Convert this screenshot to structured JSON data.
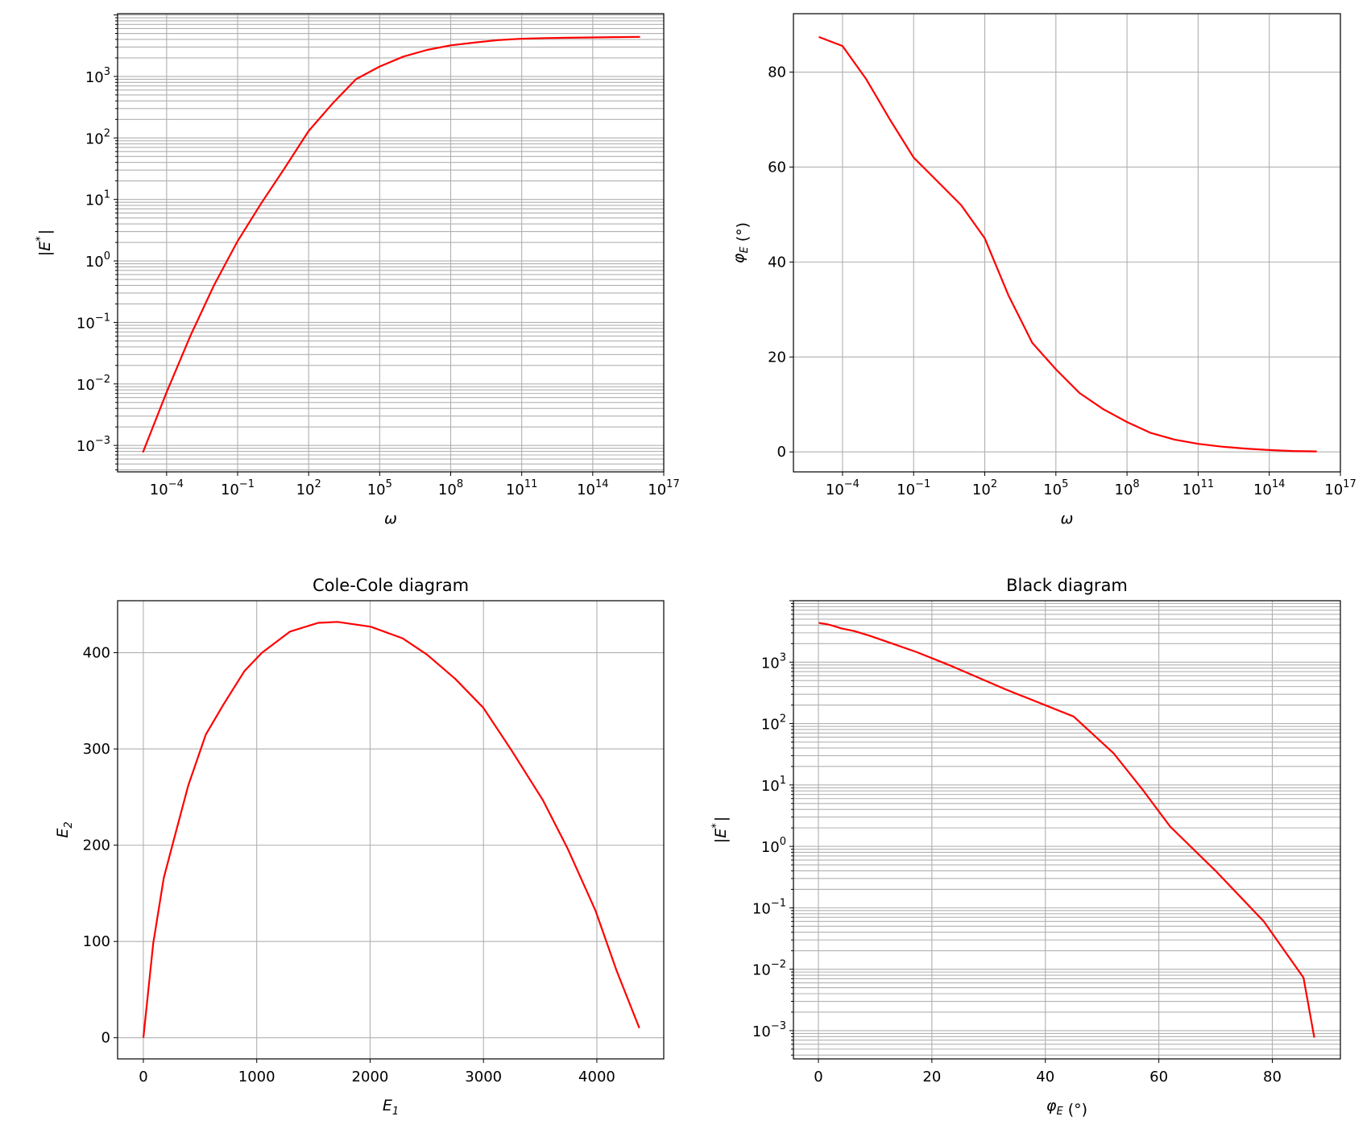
{
  "colors": {
    "line": "#ff0000",
    "grid": "#b0b0b0",
    "axis": "#000000"
  },
  "chart_data": [
    {
      "id": "modulus",
      "type": "line",
      "title": "",
      "xlabel": {
        "main": "ω",
        "italic": true
      },
      "ylabel": {
        "prefix": "|",
        "main": "E",
        "sup": "*",
        "suffix": "|",
        "italic": true
      },
      "xscale": "log",
      "yscale": "log",
      "xlim_log10": [
        -6.07,
        17
      ],
      "ylim_log10": [
        -3.43,
        4.02
      ],
      "xticks_exp": [
        -4,
        -1,
        2,
        5,
        8,
        11,
        14,
        17
      ],
      "yticks_exp": [
        -3,
        -2,
        -1,
        0,
        1,
        2,
        3
      ],
      "grid": true,
      "series": [
        {
          "name": "|E*|",
          "x_log10": [
            -5,
            -4,
            -3,
            -2,
            -1,
            0,
            1,
            2,
            3,
            4,
            5,
            6,
            7,
            8,
            9,
            10,
            11,
            12,
            13,
            14,
            15,
            16
          ],
          "y": [
            0.00077,
            0.0073,
            0.06,
            0.4,
            2.1,
            8.7,
            33,
            130,
            360,
            900,
            1450,
            2100,
            2700,
            3200,
            3550,
            3900,
            4100,
            4200,
            4250,
            4300,
            4350,
            4400
          ]
        }
      ]
    },
    {
      "id": "phase",
      "type": "line",
      "title": "",
      "xlabel": {
        "main": "ω",
        "italic": true
      },
      "ylabel": {
        "main": "φ",
        "sub": "E",
        "suffix": " (°)",
        "italic": true
      },
      "xscale": "log",
      "yscale": "linear",
      "xlim_log10": [
        -6.07,
        17
      ],
      "ylim": [
        -4.2,
        92.3
      ],
      "xticks_exp": [
        -4,
        -1,
        2,
        5,
        8,
        11,
        14,
        17
      ],
      "yticks": [
        0,
        20,
        40,
        60,
        80
      ],
      "grid": true,
      "series": [
        {
          "name": "φE",
          "x_log10": [
            -5,
            -4,
            -3,
            -2,
            -1,
            0,
            1,
            2,
            3,
            4,
            5,
            6,
            7,
            8,
            9,
            10,
            11,
            12,
            13,
            14,
            15,
            16
          ],
          "y": [
            87.4,
            85.5,
            78.5,
            70,
            62,
            57,
            52,
            45,
            33,
            23,
            17.4,
            12.4,
            9,
            6.3,
            4,
            2.6,
            1.7,
            1.1,
            0.7,
            0.4,
            0.2,
            0.1
          ]
        }
      ]
    },
    {
      "id": "cole-cole",
      "type": "line",
      "title": "Cole-Cole diagram",
      "xlabel": {
        "main": "E",
        "sub": "1",
        "italic": true
      },
      "ylabel": {
        "main": "E",
        "sub": "2",
        "italic": true
      },
      "xscale": "linear",
      "yscale": "linear",
      "xlim": [
        -227,
        4590
      ],
      "ylim": [
        -22,
        454
      ],
      "xticks": [
        0,
        1000,
        2000,
        3000,
        4000
      ],
      "yticks": [
        0,
        100,
        200,
        300,
        400
      ],
      "grid": true,
      "series": [
        {
          "name": "E2 vs E1",
          "x": [
            0,
            87,
            180,
            272,
            396,
            551,
            706,
            892,
            1046,
            1294,
            1542,
            1712,
            2006,
            2285,
            2502,
            2749,
            2997,
            3245,
            3523,
            3740,
            3988,
            4173,
            4375
          ],
          "y": [
            0,
            98,
            166,
            207,
            262,
            315,
            346,
            381,
            400,
            422,
            431,
            432,
            427,
            415,
            398,
            373,
            343,
            299,
            247,
            197,
            132,
            70,
            10
          ]
        }
      ]
    },
    {
      "id": "black",
      "type": "line",
      "title": "Black diagram",
      "xlabel": {
        "main": "φ",
        "sub": "E",
        "suffix": " (°)",
        "italic": true
      },
      "ylabel": {
        "prefix": "|",
        "main": "E",
        "sup": "*",
        "suffix": "|",
        "italic": true
      },
      "xscale": "linear",
      "yscale": "log",
      "xlim": [
        -4.4,
        92.0
      ],
      "ylim_log10": [
        -3.46,
        4.0
      ],
      "xticks": [
        0,
        20,
        40,
        60,
        80
      ],
      "yticks_exp": [
        -3,
        -2,
        -1,
        0,
        1,
        2,
        3
      ],
      "grid": true,
      "series": [
        {
          "name": "|E*| vs φE",
          "x": [
            87.4,
            85.5,
            78.5,
            70,
            62,
            57,
            52,
            45,
            33,
            23,
            17.4,
            12.4,
            9,
            6.3,
            4,
            2.6,
            1.7,
            1.1,
            0.7,
            0.4,
            0.2,
            0.1
          ],
          "y": [
            0.00077,
            0.0073,
            0.06,
            0.4,
            2.1,
            8.7,
            33,
            130,
            360,
            900,
            1450,
            2100,
            2700,
            3200,
            3550,
            3900,
            4100,
            4200,
            4250,
            4300,
            4350,
            4400
          ]
        }
      ]
    }
  ]
}
